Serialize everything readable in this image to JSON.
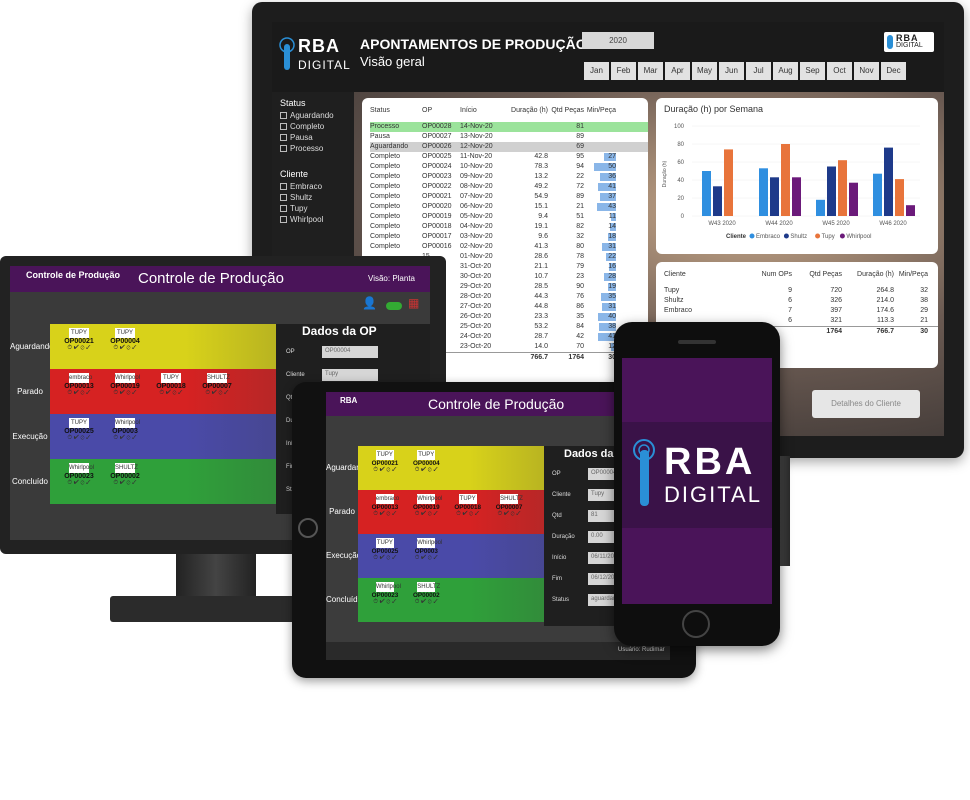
{
  "dashboard": {
    "title": "APONTAMENTOS DE PRODUÇÃO",
    "subtitle": "Visão geral",
    "logo_top": "RBA",
    "logo_bottom": "DIGITAL",
    "year": "2020",
    "months": [
      "Jan",
      "Feb",
      "Mar",
      "Apr",
      "May",
      "Jun",
      "Jul",
      "Aug",
      "Sep",
      "Oct",
      "Nov",
      "Dec"
    ],
    "status_header": "Status",
    "status_items": [
      "Aguardando",
      "Completo",
      "Pausa",
      "Processo"
    ],
    "cliente_header": "Cliente",
    "cliente_items": [
      "Embraco",
      "Shultz",
      "Tupy",
      "Whirlpool"
    ],
    "table": {
      "headers": [
        "Status",
        "OP",
        "Início",
        "Duração (h)",
        "Qtd Peças",
        "Min/Peça"
      ],
      "rows": [
        [
          "Processo",
          "OP00028",
          "14-Nov-20",
          "",
          "81",
          ""
        ],
        [
          "Pausa",
          "OP00027",
          "13-Nov-20",
          "",
          "89",
          ""
        ],
        [
          "Aguardando",
          "OP00026",
          "12-Nov-20",
          "",
          "69",
          ""
        ],
        [
          "Completo",
          "OP00025",
          "11-Nov-20",
          "42.8",
          "95",
          "27"
        ],
        [
          "Completo",
          "OP00024",
          "10-Nov-20",
          "78.3",
          "94",
          "50"
        ],
        [
          "Completo",
          "OP00023",
          "09-Nov-20",
          "13.2",
          "22",
          "36"
        ],
        [
          "Completo",
          "OP00022",
          "08-Nov-20",
          "49.2",
          "72",
          "41"
        ],
        [
          "Completo",
          "OP00021",
          "07-Nov-20",
          "54.9",
          "89",
          "37"
        ],
        [
          "Completo",
          "OP00020",
          "06-Nov-20",
          "15.1",
          "21",
          "43"
        ],
        [
          "Completo",
          "OP00019",
          "05-Nov-20",
          "9.4",
          "51",
          "11"
        ],
        [
          "Completo",
          "OP00018",
          "04-Nov-20",
          "19.1",
          "82",
          "14"
        ],
        [
          "Completo",
          "OP00017",
          "03-Nov-20",
          "9.6",
          "32",
          "18"
        ],
        [
          "Completo",
          "OP00016",
          "02-Nov-20",
          "41.3",
          "80",
          "31"
        ],
        [
          "",
          "15",
          "01-Nov-20",
          "28.6",
          "78",
          "22"
        ],
        [
          "",
          "14",
          "31-Oct-20",
          "21.1",
          "79",
          "16"
        ],
        [
          "",
          "13",
          "30-Oct-20",
          "10.7",
          "23",
          "28"
        ],
        [
          "",
          "12",
          "29-Oct-20",
          "28.5",
          "90",
          "19"
        ],
        [
          "",
          "11",
          "28-Oct-20",
          "44.3",
          "76",
          "35"
        ],
        [
          "",
          "10",
          "27-Oct-20",
          "44.8",
          "86",
          "31"
        ],
        [
          "",
          "09",
          "26-Oct-20",
          "23.3",
          "35",
          "40"
        ],
        [
          "",
          "08",
          "25-Oct-20",
          "53.2",
          "84",
          "38"
        ],
        [
          "",
          "07",
          "24-Oct-20",
          "28.7",
          "42",
          "41"
        ],
        [
          "",
          "06",
          "23-Oct-20",
          "14.0",
          "70",
          "12"
        ]
      ],
      "total_dur": "766.7",
      "total_qtd": "1764",
      "total_min": "30"
    },
    "chart": {
      "title": "Duração (h) por Semana",
      "ylabel": "Duração (h)",
      "legend_label": "Cliente",
      "yticks": [
        "100",
        "80",
        "60",
        "40",
        "20",
        "0"
      ]
    },
    "client_table": {
      "headers": [
        "Cliente",
        "Num OPs",
        "Qtd Peças",
        "Duração (h)",
        "Min/Peça"
      ],
      "rows": [
        [
          "Tupy",
          "9",
          "720",
          "264.8",
          "32"
        ],
        [
          "Shultz",
          "6",
          "326",
          "214.0",
          "38"
        ],
        [
          "Embraco",
          "7",
          "397",
          "174.6",
          "29"
        ],
        [
          "",
          "6",
          "321",
          "113.3",
          "21"
        ]
      ],
      "total": [
        "",
        "1764",
        "766.7",
        "30"
      ]
    },
    "details_button": "Detalhes do Cliente"
  },
  "chart_data": {
    "type": "bar",
    "title": "Duração (h) por Semana",
    "ylabel": "Duração (h)",
    "ylim": [
      0,
      100
    ],
    "categories": [
      "W43 2020",
      "W44 2020",
      "W45 2020",
      "W46 2020"
    ],
    "series": [
      {
        "name": "Embraco",
        "color": "#2f8fe0",
        "values": [
          50,
          53,
          18,
          47
        ]
      },
      {
        "name": "Shultz",
        "color": "#1e3a8a",
        "values": [
          33,
          43,
          55,
          76
        ]
      },
      {
        "name": "Tupy",
        "color": "#e8743b",
        "values": [
          74,
          80,
          62,
          41
        ]
      },
      {
        "name": "Whirlpool",
        "color": "#6b1a7a",
        "values": [
          0,
          43,
          37,
          12
        ]
      }
    ],
    "legend": "bottom"
  },
  "control": {
    "title": "Controle de Produção",
    "view": "Visão: Planta",
    "lanes": [
      {
        "label": "Aguardando",
        "color": "#d8d21a",
        "cards": [
          {
            "brand": "TUPY",
            "op": "OP00021"
          },
          {
            "brand": "TUPY",
            "op": "OP00004"
          }
        ]
      },
      {
        "label": "Parado",
        "color": "#d62222",
        "cards": [
          {
            "brand": "embraco",
            "op": "OP00013"
          },
          {
            "brand": "Whirlpool",
            "op": "OP00019"
          },
          {
            "brand": "TUPY",
            "op": "OP00018"
          },
          {
            "brand": "SHULTZ",
            "op": "OP00007"
          }
        ]
      },
      {
        "label": "Execução",
        "color": "#4a4aa8",
        "cards": [
          {
            "brand": "TUPY",
            "op": "OP00025"
          },
          {
            "brand": "Whirlpool",
            "op": "OP0003"
          }
        ]
      },
      {
        "label": "Concluído",
        "color": "#2fa03a",
        "cards": [
          {
            "brand": "Whirlpool",
            "op": "OP00023"
          },
          {
            "brand": "SHULTZ",
            "op": "OP00002"
          }
        ]
      }
    ],
    "panel_title": "Dados da OP",
    "fields": [
      {
        "label": "OP",
        "value": "OP00004"
      },
      {
        "label": "Cliente",
        "value": "Tupy"
      },
      {
        "label": "Qtd",
        "value": "81"
      },
      {
        "label": "Duração",
        "value": "0.00"
      },
      {
        "label": "Início",
        "value": "06/11/2020"
      },
      {
        "label": "Fim",
        "value": "06/12/2020"
      },
      {
        "label": "Status",
        "value": "aguardando"
      }
    ],
    "user": "Usuário: Rudimar"
  },
  "phone": {
    "logo_top": "RBA",
    "logo_bottom": "DIGITAL"
  }
}
